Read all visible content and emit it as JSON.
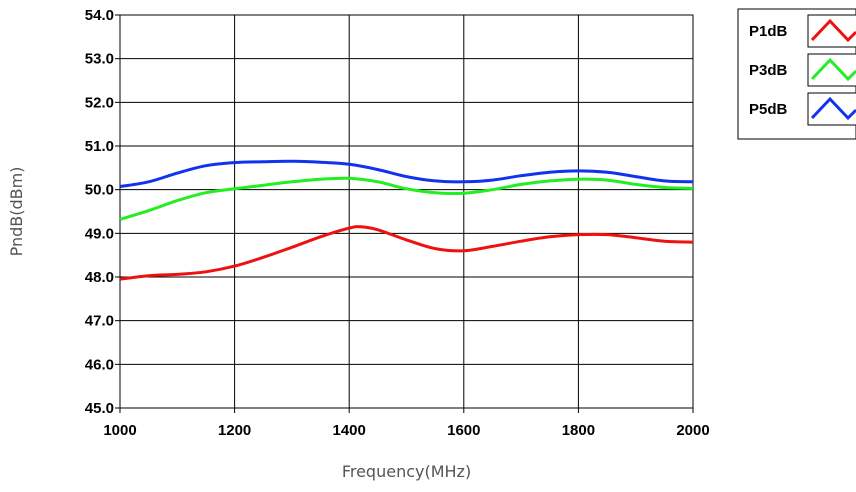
{
  "chart_data": {
    "type": "line",
    "title": "",
    "xlabel": "Frequency(MHz)",
    "ylabel": "PndB(dBm)",
    "xlim": [
      1000,
      2000
    ],
    "ylim": [
      45.0,
      54.0
    ],
    "x_ticks": [
      1000,
      1200,
      1400,
      1600,
      1800,
      2000
    ],
    "y_ticks": [
      "45.0",
      "46.0",
      "47.0",
      "48.0",
      "49.0",
      "50.0",
      "51.0",
      "52.0",
      "53.0",
      "54.0"
    ],
    "grid": true,
    "legend_position": "top-right",
    "series": [
      {
        "name": "P1dB",
        "color": "#ee1111",
        "x": [
          1000,
          1050,
          1100,
          1150,
          1200,
          1250,
          1300,
          1350,
          1400,
          1420,
          1450,
          1500,
          1550,
          1600,
          1650,
          1700,
          1750,
          1800,
          1850,
          1900,
          1950,
          2000
        ],
        "y": [
          47.95,
          48.03,
          48.06,
          48.12,
          48.25,
          48.45,
          48.68,
          48.92,
          49.12,
          49.15,
          49.08,
          48.85,
          48.65,
          48.6,
          48.7,
          48.82,
          48.92,
          48.97,
          48.97,
          48.9,
          48.82,
          48.8
        ]
      },
      {
        "name": "P3dB",
        "color": "#22ee22",
        "x": [
          1000,
          1050,
          1100,
          1150,
          1200,
          1250,
          1300,
          1350,
          1400,
          1450,
          1500,
          1550,
          1600,
          1650,
          1700,
          1750,
          1800,
          1850,
          1900,
          1950,
          2000
        ],
        "y": [
          49.32,
          49.52,
          49.75,
          49.93,
          50.02,
          50.1,
          50.18,
          50.24,
          50.26,
          50.18,
          50.02,
          49.93,
          49.92,
          50.0,
          50.12,
          50.2,
          50.24,
          50.22,
          50.12,
          50.05,
          50.03
        ]
      },
      {
        "name": "P5dB",
        "color": "#1133ee",
        "x": [
          1000,
          1050,
          1100,
          1150,
          1200,
          1250,
          1300,
          1350,
          1400,
          1450,
          1500,
          1550,
          1600,
          1650,
          1700,
          1750,
          1800,
          1850,
          1900,
          1950,
          2000
        ],
        "y": [
          50.07,
          50.18,
          50.38,
          50.55,
          50.62,
          50.64,
          50.65,
          50.63,
          50.58,
          50.46,
          50.3,
          50.2,
          50.18,
          50.22,
          50.32,
          50.4,
          50.43,
          50.4,
          50.3,
          50.2,
          50.18
        ]
      }
    ]
  }
}
